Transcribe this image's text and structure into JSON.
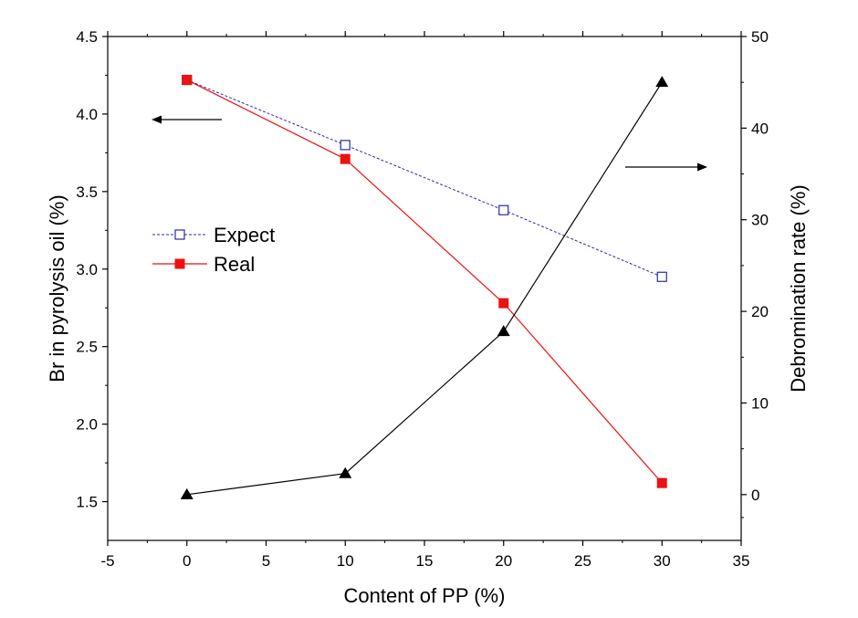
{
  "chart_data": {
    "type": "line",
    "xlabel": "Content of PP (%)",
    "ylabel_left": "Br in pyrolysis oil (%)",
    "ylabel_right": "Debromination rate (%)",
    "xlim": [
      -5,
      35
    ],
    "ylim_left": [
      1.25,
      4.5
    ],
    "ylim_right": [
      -5,
      50
    ],
    "x_ticks": [
      -5,
      0,
      5,
      10,
      15,
      20,
      25,
      30,
      35
    ],
    "y_left_ticks": [
      1.5,
      2.0,
      2.5,
      3.0,
      3.5,
      4.0,
      4.5
    ],
    "y_right_ticks": [
      0,
      10,
      20,
      30,
      40,
      50
    ],
    "grid": false,
    "legend_position": "left",
    "series": [
      {
        "name": "Expect",
        "axis": "left",
        "color": "#2a2aa8",
        "marker": "open-square",
        "line_style": "dashed",
        "x": [
          0,
          10,
          20,
          30
        ],
        "y": [
          4.22,
          3.8,
          3.38,
          2.95
        ]
      },
      {
        "name": "Real",
        "axis": "left",
        "color": "#ee1111",
        "marker": "filled-square",
        "line_style": "solid",
        "x": [
          0,
          10,
          20,
          30
        ],
        "y": [
          4.22,
          3.71,
          2.78,
          1.62
        ]
      },
      {
        "axis": "right",
        "color": "#000000",
        "marker": "filled-triangle",
        "line_style": "solid",
        "x": [
          0,
          10,
          20,
          30
        ],
        "y": [
          0.0,
          2.3,
          17.8,
          45.0
        ]
      }
    ],
    "annotations": [
      {
        "type": "arrow",
        "direction": "left",
        "meaning": "left axis"
      },
      {
        "type": "arrow",
        "direction": "right",
        "meaning": "right axis"
      }
    ]
  }
}
